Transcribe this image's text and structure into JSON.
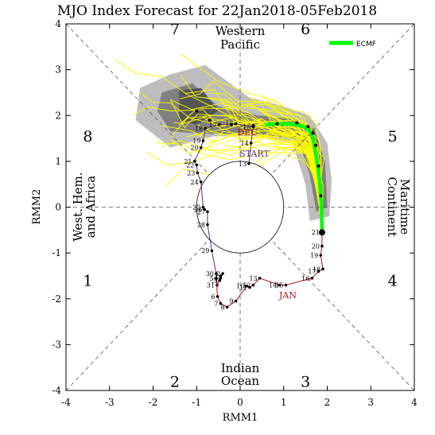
{
  "chart_data": {
    "type": "line",
    "title": "MJO Index Forecast for 22Jan2018-05Feb2018",
    "xlabel": "RMM1",
    "ylabel": "RMM2",
    "xlim": [
      -4,
      4
    ],
    "ylim": [
      -4,
      4
    ],
    "xticks": [
      "-4",
      "-3",
      "-2",
      "-1",
      "0",
      "1",
      "2",
      "3",
      "4"
    ],
    "yticks": [
      "-4",
      "-3",
      "-2",
      "-1",
      "0",
      "1",
      "2",
      "3",
      "4"
    ],
    "phase_numbers": [
      "1",
      "2",
      "3",
      "4",
      "5",
      "6",
      "7",
      "8"
    ],
    "regions": {
      "bottom": [
        "Indian",
        "Ocean"
      ],
      "right": [
        "Maritime",
        "Continent"
      ],
      "top": [
        "Western",
        "Pacific"
      ],
      "left": [
        "West. Hem.",
        "and Africa"
      ]
    },
    "colors": {
      "dec": "#5b2a86",
      "jan": "#b01010",
      "ensemble": "#ffff00",
      "ecmf": "#00ff00",
      "spread_outer": "#bdbdbd",
      "spread_inner": "#808080",
      "spread_core": "#545454"
    },
    "legend": {
      "position": "top-right",
      "entries": [
        "ECMF"
      ]
    },
    "month_labels": {
      "dec": {
        "text": "DEC",
        "x": 0.1,
        "y": 1.6
      },
      "jan": {
        "text": "JAN",
        "x": 1.2,
        "y": -1.9
      },
      "start": {
        "text": "START",
        "x": 0.25,
        "y": 1.15
      }
    },
    "observed_dec": [
      {
        "day": "13",
        "x": 0.2,
        "y": 0.95
      },
      {
        "day": "14",
        "x": 0.25,
        "y": 1.4
      },
      {
        "day": "15",
        "x": 0.3,
        "y": 1.75
      },
      {
        "day": "16",
        "x": -0.1,
        "y": 1.82
      },
      {
        "day": "17",
        "x": -0.48,
        "y": 1.8
      },
      {
        "day": "18",
        "x": -0.8,
        "y": 1.72
      },
      {
        "day": "19",
        "x": -0.85,
        "y": 1.45
      },
      {
        "day": "20",
        "x": -0.9,
        "y": 1.3
      },
      {
        "day": "21",
        "x": -1.05,
        "y": 1.0
      },
      {
        "day": "22",
        "x": -1.0,
        "y": 0.92
      },
      {
        "day": "23",
        "x": -0.98,
        "y": 0.75
      },
      {
        "day": "24",
        "x": -0.9,
        "y": 0.55
      },
      {
        "day": "25",
        "x": -0.85,
        "y": 0.0
      },
      {
        "day": "26",
        "x": -0.82,
        "y": -0.05
      },
      {
        "day": "27",
        "x": -0.75,
        "y": -0.1
      },
      {
        "day": "28",
        "x": -0.75,
        "y": -0.38
      },
      {
        "day": "29",
        "x": -0.65,
        "y": -0.95
      },
      {
        "day": "30",
        "x": -0.55,
        "y": -1.45
      },
      {
        "day": "31",
        "x": -0.53,
        "y": -1.7
      }
    ],
    "observed_jan": [
      {
        "day": "1",
        "x": -0.45,
        "y": -1.5
      },
      {
        "day": "2",
        "x": -0.4,
        "y": -1.45
      },
      {
        "day": "3",
        "x": -0.47,
        "y": -1.6
      },
      {
        "day": "4",
        "x": -0.45,
        "y": -1.55
      },
      {
        "day": "5",
        "x": -0.55,
        "y": -1.55
      },
      {
        "day": "6",
        "x": -0.52,
        "y": -1.95
      },
      {
        "day": "7",
        "x": -0.45,
        "y": -2.1
      },
      {
        "day": "8",
        "x": -0.3,
        "y": -2.18
      },
      {
        "day": "9",
        "x": -0.1,
        "y": -2.05
      },
      {
        "day": "10",
        "x": 0.15,
        "y": -1.72
      },
      {
        "day": "11",
        "x": 0.22,
        "y": -1.75
      },
      {
        "day": "12",
        "x": 0.3,
        "y": -1.7
      },
      {
        "day": "13",
        "x": 0.45,
        "y": -1.55
      },
      {
        "day": "14",
        "x": 0.9,
        "y": -1.7
      },
      {
        "day": "15",
        "x": 1.05,
        "y": -1.7
      },
      {
        "day": "16",
        "x": 1.65,
        "y": -1.55
      },
      {
        "day": "17",
        "x": 1.8,
        "y": -1.4
      },
      {
        "day": "18",
        "x": 1.9,
        "y": -1.35
      },
      {
        "day": "19",
        "x": 1.85,
        "y": -1.05
      },
      {
        "day": "20",
        "x": 1.88,
        "y": -0.85
      },
      {
        "day": "21",
        "x": 1.88,
        "y": -0.55
      }
    ],
    "ecmf_forecast": {
      "name": "ECMF",
      "x": [
        1.88,
        1.87,
        1.85,
        1.82,
        1.78,
        1.74,
        1.7,
        1.67,
        1.62,
        1.56,
        1.45,
        1.3,
        1.1,
        0.85,
        0.6
      ],
      "y": [
        -0.55,
        -0.1,
        0.25,
        0.6,
        0.9,
        1.15,
        1.35,
        1.52,
        1.62,
        1.7,
        1.76,
        1.8,
        1.82,
        1.82,
        1.8
      ]
    },
    "ecmf_dots": {
      "x": [
        1.88,
        1.85,
        1.8,
        1.74,
        1.67,
        1.56,
        1.3,
        0.85,
        0.3,
        -0.2,
        -0.7,
        -1.0
      ],
      "y": [
        -0.55,
        0.25,
        0.9,
        1.35,
        1.62,
        1.76,
        1.84,
        1.82,
        1.78,
        1.8,
        1.9,
        2.1
      ]
    }
  }
}
